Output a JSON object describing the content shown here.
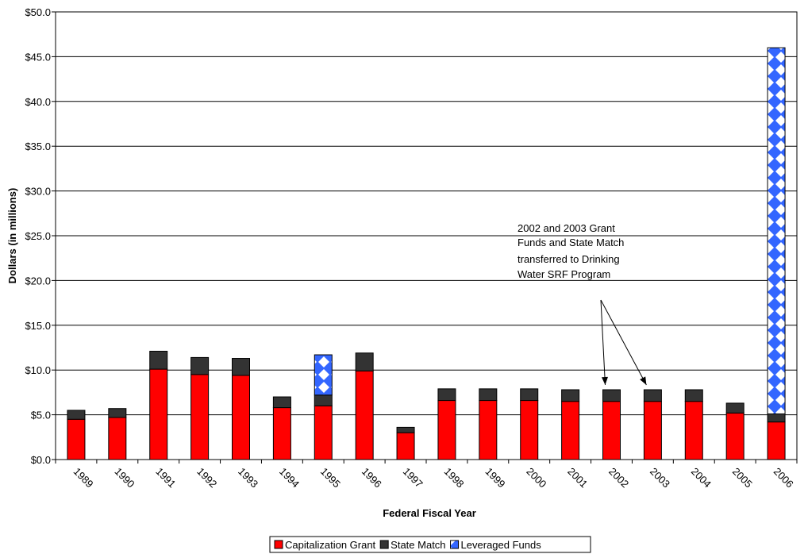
{
  "chart_data": {
    "type": "bar",
    "stacked": true,
    "xlabel": "Federal Fiscal Year",
    "ylabel": "Dollars (in millions)",
    "ylim": [
      0,
      50
    ],
    "ytick_step": 5,
    "ytick_labels": [
      "$0.0",
      "$5.0",
      "$10.0",
      "$15.0",
      "$20.0",
      "$25.0",
      "$30.0",
      "$35.0",
      "$40.0",
      "$45.0",
      "$50.0"
    ],
    "grid": true,
    "legend_position": "bottom",
    "categories": [
      "1989",
      "1990",
      "1991",
      "1992",
      "1993",
      "1994",
      "1995",
      "1996",
      "1997",
      "1998",
      "1999",
      "2000",
      "2001",
      "2002",
      "2003",
      "2004",
      "2005",
      "2006"
    ],
    "series": [
      {
        "name": "Capitalization Grant",
        "color": "#ff0000",
        "pattern": "solid",
        "values": [
          4.5,
          4.7,
          10.1,
          9.5,
          9.4,
          5.8,
          6.0,
          9.9,
          3.0,
          6.6,
          6.6,
          6.6,
          6.5,
          6.5,
          6.5,
          6.5,
          5.2,
          4.2
        ]
      },
      {
        "name": "State Match",
        "color": "#333333",
        "pattern": "solid",
        "values": [
          1.0,
          1.0,
          2.0,
          1.9,
          1.9,
          1.2,
          1.2,
          2.0,
          0.6,
          1.3,
          1.3,
          1.3,
          1.3,
          1.3,
          1.3,
          1.3,
          1.1,
          0.9
        ]
      },
      {
        "name": "Leveraged Funds",
        "color": "#3366ff",
        "pattern": "diamond-checker",
        "values": [
          0,
          0,
          0,
          0,
          0,
          0,
          4.5,
          0,
          0,
          0,
          0,
          0,
          0,
          0,
          0,
          0,
          0,
          40.9
        ]
      }
    ],
    "annotations": [
      {
        "text_lines": [
          "2002 and 2003 Grant",
          "Funds and State Match",
          "transferred to Drinking",
          "Water SRF Program"
        ],
        "arrow_targets": [
          "2002",
          "2003"
        ]
      }
    ]
  }
}
